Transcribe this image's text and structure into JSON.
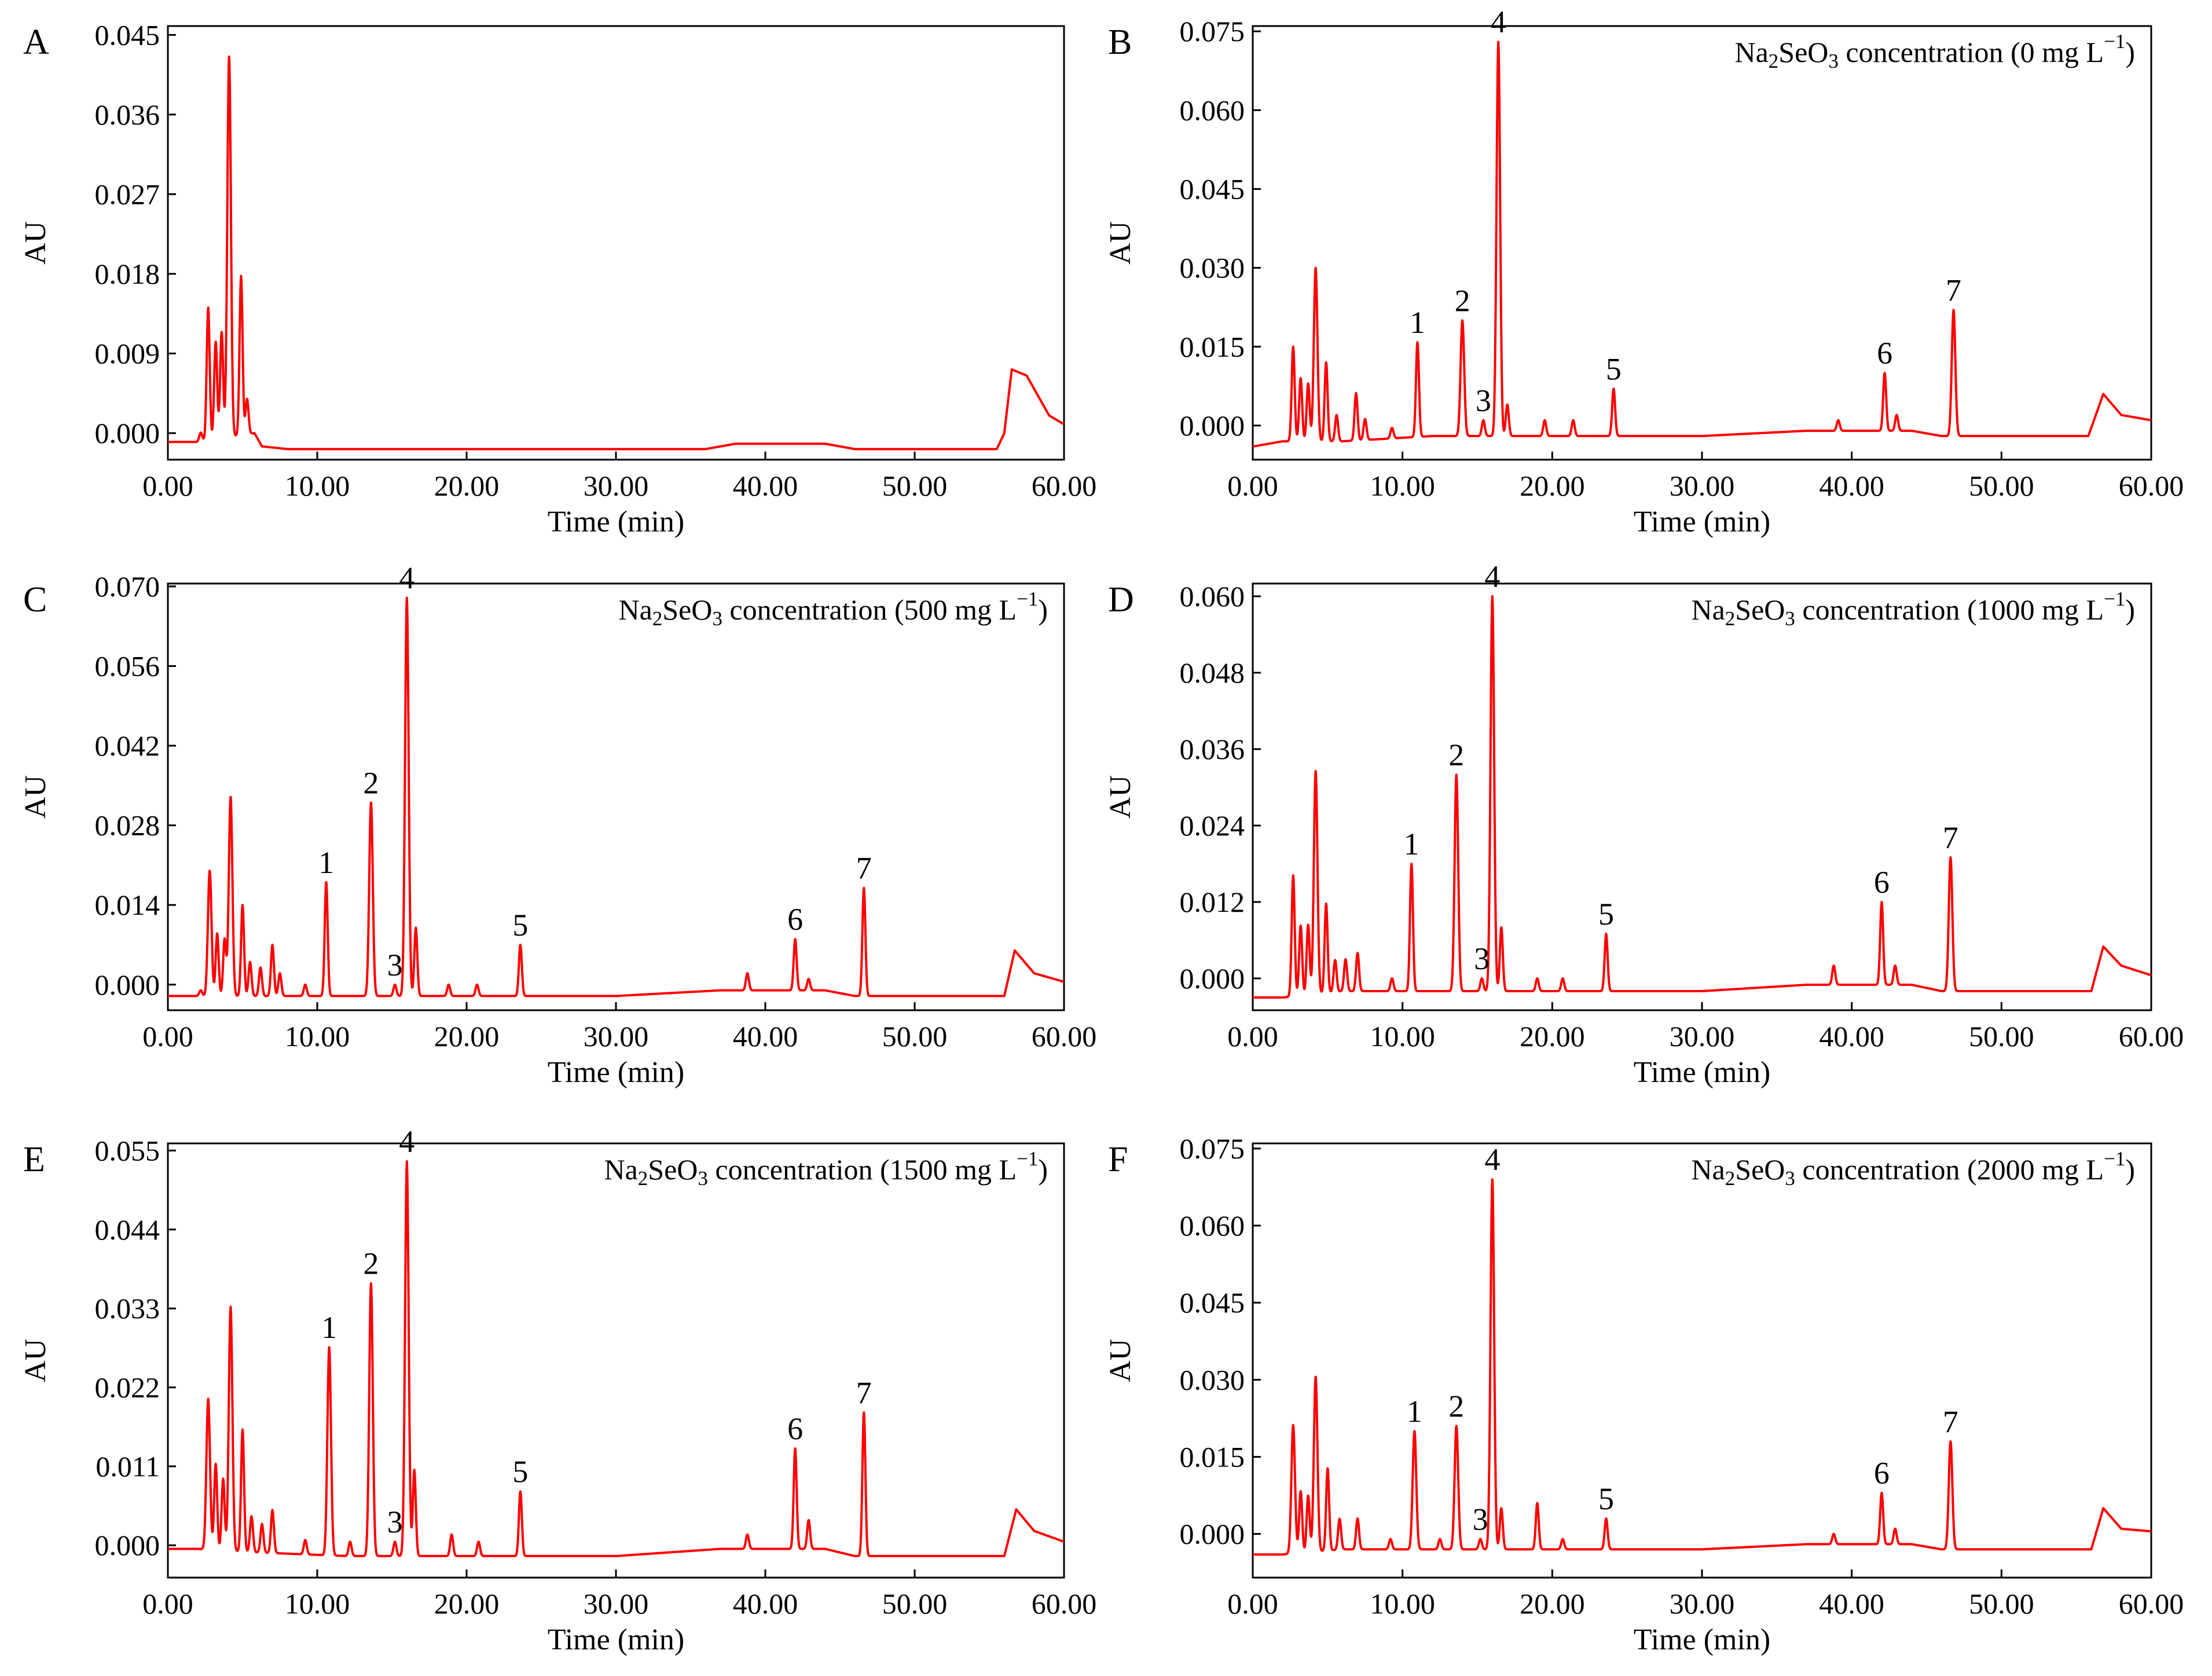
{
  "colors": {
    "trace": "#ff0000",
    "axis": "#000000",
    "background": "#ffffff"
  },
  "chart_data": [
    {
      "type": "line",
      "panel": "A",
      "annotation": null,
      "xlabel": "Time (min)",
      "ylabel": "AU",
      "xlim": [
        0,
        60
      ],
      "ylim": [
        -0.003,
        0.046
      ],
      "xticks": [
        "0.00",
        "10.00",
        "20.00",
        "30.00",
        "40.00",
        "50.00",
        "60.00"
      ],
      "yticks": [
        "0.000",
        "0.009",
        "0.018",
        "0.027",
        "0.036",
        "0.045"
      ],
      "ytick_values": [
        0,
        0.009,
        0.018,
        0.027,
        0.036,
        0.045
      ],
      "baseline": [
        [
          0,
          -0.001
        ],
        [
          2,
          -0.001
        ],
        [
          5.8,
          0
        ],
        [
          6.3,
          -0.0015
        ],
        [
          8,
          -0.0018
        ],
        [
          36,
          -0.0018
        ],
        [
          38,
          -0.0012
        ],
        [
          44,
          -0.0012
        ],
        [
          46,
          -0.0018
        ],
        [
          55.5,
          -0.0018
        ],
        [
          56,
          0
        ],
        [
          56.5,
          0.0072
        ],
        [
          57.5,
          0.0065
        ],
        [
          59,
          0.002
        ],
        [
          60,
          0.001
        ]
      ],
      "peaks": [
        {
          "t": 2.2,
          "h": 0.001
        },
        {
          "t": 2.7,
          "h": 0.015
        },
        {
          "t": 3.2,
          "h": 0.011
        },
        {
          "t": 3.6,
          "h": 0.012
        },
        {
          "t": 4.1,
          "h": 0.043
        },
        {
          "t": 4.9,
          "h": 0.018
        },
        {
          "t": 5.3,
          "h": 0.004
        }
      ],
      "labels": []
    },
    {
      "type": "line",
      "panel": "B",
      "annotation": [
        "Na",
        "2",
        "SeO",
        "3",
        " concentration (0 mg L",
        "−1",
        ")"
      ],
      "xlabel": "Time (min)",
      "ylabel": "AU",
      "xlim": [
        0,
        60
      ],
      "ylim": [
        -0.0065,
        0.076
      ],
      "xticks": [
        "0.00",
        "10.00",
        "20.00",
        "30.00",
        "40.00",
        "50.00",
        "60.00"
      ],
      "yticks": [
        "0.000",
        "0.015",
        "0.030",
        "0.045",
        "0.060",
        "0.075"
      ],
      "ytick_values": [
        0,
        0.015,
        0.03,
        0.045,
        0.06,
        0.075
      ],
      "baseline": [
        [
          0,
          -0.004
        ],
        [
          2,
          -0.003
        ],
        [
          6,
          -0.003
        ],
        [
          12,
          -0.002
        ],
        [
          30,
          -0.002
        ],
        [
          37,
          -0.001
        ],
        [
          44,
          -0.001
        ],
        [
          46,
          -0.002
        ],
        [
          55.8,
          -0.002
        ],
        [
          56.8,
          0.006
        ],
        [
          58,
          0.002
        ],
        [
          60,
          0.001
        ]
      ],
      "peaks": [
        {
          "t": 2.7,
          "h": 0.018
        },
        {
          "t": 3.2,
          "h": 0.012
        },
        {
          "t": 3.7,
          "h": 0.011
        },
        {
          "t": 4.2,
          "h": 0.033
        },
        {
          "t": 4.9,
          "h": 0.015
        },
        {
          "t": 5.6,
          "h": 0.005
        },
        {
          "t": 6.9,
          "h": 0.009
        },
        {
          "t": 7.5,
          "h": 0.004
        },
        {
          "t": 9.3,
          "h": 0.002
        },
        {
          "t": 11,
          "h": 0.018
        },
        {
          "t": 14,
          "h": 0.022
        },
        {
          "t": 15.4,
          "h": 0.003
        },
        {
          "t": 16.4,
          "h": 0.075
        },
        {
          "t": 17,
          "h": 0.006
        },
        {
          "t": 19.5,
          "h": 0.003
        },
        {
          "t": 21.4,
          "h": 0.003
        },
        {
          "t": 24.1,
          "h": 0.009
        },
        {
          "t": 39.1,
          "h": 0.002
        },
        {
          "t": 42.2,
          "h": 0.011
        },
        {
          "t": 43,
          "h": 0.003
        },
        {
          "t": 46.8,
          "h": 0.024
        }
      ],
      "labels": [
        {
          "text": "1",
          "t": 11,
          "h": 0.018
        },
        {
          "text": "2",
          "t": 14,
          "h": 0.022
        },
        {
          "text": "3",
          "t": 15.4,
          "h": 0.003
        },
        {
          "text": "4",
          "t": 16.4,
          "h": 0.075
        },
        {
          "text": "5",
          "t": 24.1,
          "h": 0.009
        },
        {
          "text": "6",
          "t": 42.2,
          "h": 0.011
        },
        {
          "text": "7",
          "t": 46.8,
          "h": 0.024
        }
      ]
    },
    {
      "type": "line",
      "panel": "C",
      "annotation": [
        "Na",
        "2",
        "SeO",
        "3",
        " concentration (500 mg L",
        "−1",
        ")"
      ],
      "xlabel": "Time (min)",
      "ylabel": "AU",
      "xlim": [
        0,
        60
      ],
      "ylim": [
        -0.0045,
        0.0705
      ],
      "xticks": [
        "0.00",
        "10.00",
        "20.00",
        "30.00",
        "40.00",
        "50.00",
        "60.00"
      ],
      "yticks": [
        "0.000",
        "0.014",
        "0.028",
        "0.042",
        "0.056",
        "0.070"
      ],
      "ytick_values": [
        0,
        0.014,
        0.028,
        0.042,
        0.056,
        0.07
      ],
      "baseline": [
        [
          0,
          -0.002
        ],
        [
          2,
          -0.002
        ],
        [
          6,
          -0.002
        ],
        [
          12,
          -0.002
        ],
        [
          30,
          -0.002
        ],
        [
          37,
          -0.001
        ],
        [
          44,
          -0.001
        ],
        [
          46,
          -0.002
        ],
        [
          56,
          -0.002
        ],
        [
          56.7,
          0.006
        ],
        [
          58,
          0.002
        ],
        [
          60,
          0.0005
        ]
      ],
      "peaks": [
        {
          "t": 2.2,
          "h": 0.001
        },
        {
          "t": 2.8,
          "h": 0.022
        },
        {
          "t": 3.3,
          "h": 0.011
        },
        {
          "t": 3.8,
          "h": 0.01
        },
        {
          "t": 4.2,
          "h": 0.035
        },
        {
          "t": 5,
          "h": 0.016
        },
        {
          "t": 5.5,
          "h": 0.006
        },
        {
          "t": 6.2,
          "h": 0.005
        },
        {
          "t": 7,
          "h": 0.009
        },
        {
          "t": 7.5,
          "h": 0.004
        },
        {
          "t": 9.2,
          "h": 0.002
        },
        {
          "t": 10.6,
          "h": 0.02
        },
        {
          "t": 13.6,
          "h": 0.034
        },
        {
          "t": 15.2,
          "h": 0.002
        },
        {
          "t": 16,
          "h": 0.07
        },
        {
          "t": 16.6,
          "h": 0.012
        },
        {
          "t": 18.8,
          "h": 0.002
        },
        {
          "t": 20.7,
          "h": 0.002
        },
        {
          "t": 23.6,
          "h": 0.009
        },
        {
          "t": 38.8,
          "h": 0.003
        },
        {
          "t": 42,
          "h": 0.009
        },
        {
          "t": 42.9,
          "h": 0.002
        },
        {
          "t": 46.6,
          "h": 0.019
        }
      ],
      "labels": [
        {
          "text": "1",
          "t": 10.6,
          "h": 0.02
        },
        {
          "text": "2",
          "t": 13.6,
          "h": 0.034
        },
        {
          "text": "3",
          "t": 15.2,
          "h": 0.002
        },
        {
          "text": "4",
          "t": 16,
          "h": 0.07
        },
        {
          "text": "5",
          "t": 23.6,
          "h": 0.009
        },
        {
          "text": "6",
          "t": 42,
          "h": 0.009
        },
        {
          "text": "7",
          "t": 46.6,
          "h": 0.019
        }
      ]
    },
    {
      "type": "line",
      "panel": "D",
      "annotation": [
        "Na",
        "2",
        "SeO",
        "3",
        " concentration (1000 mg L",
        "−1",
        ")"
      ],
      "xlabel": "Time (min)",
      "ylabel": "AU",
      "xlim": [
        0,
        60
      ],
      "ylim": [
        -0.005,
        0.062
      ],
      "xticks": [
        "0.00",
        "10.00",
        "20.00",
        "30.00",
        "40.00",
        "50.00",
        "60.00"
      ],
      "yticks": [
        "0.000",
        "0.012",
        "0.024",
        "0.036",
        "0.048",
        "0.060"
      ],
      "ytick_values": [
        0,
        0.012,
        0.024,
        0.036,
        0.048,
        0.06
      ],
      "baseline": [
        [
          0,
          -0.003
        ],
        [
          2,
          -0.003
        ],
        [
          6,
          -0.002
        ],
        [
          12,
          -0.002
        ],
        [
          30,
          -0.002
        ],
        [
          37,
          -0.001
        ],
        [
          44,
          -0.001
        ],
        [
          46,
          -0.002
        ],
        [
          56,
          -0.002
        ],
        [
          56.8,
          0.005
        ],
        [
          58,
          0.002
        ],
        [
          60,
          0.0005
        ]
      ],
      "peaks": [
        {
          "t": 2.7,
          "h": 0.019
        },
        {
          "t": 3.2,
          "h": 0.011
        },
        {
          "t": 3.7,
          "h": 0.011
        },
        {
          "t": 4.2,
          "h": 0.035
        },
        {
          "t": 4.9,
          "h": 0.014
        },
        {
          "t": 5.5,
          "h": 0.005
        },
        {
          "t": 6.2,
          "h": 0.005
        },
        {
          "t": 7,
          "h": 0.006
        },
        {
          "t": 9.3,
          "h": 0.002
        },
        {
          "t": 10.6,
          "h": 0.02
        },
        {
          "t": 13.6,
          "h": 0.034
        },
        {
          "t": 15.3,
          "h": 0.002
        },
        {
          "t": 16,
          "h": 0.062
        },
        {
          "t": 16.6,
          "h": 0.01
        },
        {
          "t": 19,
          "h": 0.002
        },
        {
          "t": 20.7,
          "h": 0.002
        },
        {
          "t": 23.6,
          "h": 0.009
        },
        {
          "t": 38.8,
          "h": 0.003
        },
        {
          "t": 42,
          "h": 0.013
        },
        {
          "t": 42.9,
          "h": 0.003
        },
        {
          "t": 46.6,
          "h": 0.021
        }
      ],
      "labels": [
        {
          "text": "1",
          "t": 10.6,
          "h": 0.02
        },
        {
          "text": "2",
          "t": 13.6,
          "h": 0.034
        },
        {
          "text": "3",
          "t": 15.3,
          "h": 0.002
        },
        {
          "text": "4",
          "t": 16,
          "h": 0.062
        },
        {
          "text": "5",
          "t": 23.6,
          "h": 0.009
        },
        {
          "text": "6",
          "t": 42,
          "h": 0.013
        },
        {
          "text": "7",
          "t": 46.6,
          "h": 0.021
        }
      ]
    },
    {
      "type": "line",
      "panel": "E",
      "annotation": [
        "Na",
        "2",
        "SeO",
        "3",
        " concentration (1500 mg L",
        "−1",
        ")"
      ],
      "xlabel": "Time (min)",
      "ylabel": "AU",
      "xlim": [
        0,
        60
      ],
      "ylim": [
        -0.0045,
        0.056
      ],
      "xticks": [
        "0.00",
        "10.00",
        "20.00",
        "30.00",
        "40.00",
        "50.00",
        "60.00"
      ],
      "yticks": [
        "0.000",
        "0.011",
        "0.022",
        "0.033",
        "0.044",
        "0.055"
      ],
      "ytick_values": [
        0,
        0.011,
        0.022,
        0.033,
        0.044,
        0.055
      ],
      "baseline": [
        [
          0,
          -0.0005
        ],
        [
          2,
          -0.0005
        ],
        [
          6,
          -0.001
        ],
        [
          12,
          -0.0015
        ],
        [
          30,
          -0.0015
        ],
        [
          37,
          -0.0005
        ],
        [
          44,
          -0.0005
        ],
        [
          46,
          -0.0015
        ],
        [
          56,
          -0.0015
        ],
        [
          56.8,
          0.005
        ],
        [
          58,
          0.002
        ],
        [
          60,
          0.0005
        ]
      ],
      "peaks": [
        {
          "t": 2.7,
          "h": 0.021
        },
        {
          "t": 3.2,
          "h": 0.012
        },
        {
          "t": 3.7,
          "h": 0.01
        },
        {
          "t": 4.2,
          "h": 0.034
        },
        {
          "t": 5,
          "h": 0.017
        },
        {
          "t": 5.6,
          "h": 0.005
        },
        {
          "t": 6.3,
          "h": 0.004
        },
        {
          "t": 7,
          "h": 0.006
        },
        {
          "t": 9.2,
          "h": 0.002
        },
        {
          "t": 10.8,
          "h": 0.029
        },
        {
          "t": 12.2,
          "h": 0.002
        },
        {
          "t": 13.6,
          "h": 0.038
        },
        {
          "t": 15.2,
          "h": 0.002
        },
        {
          "t": 16,
          "h": 0.055
        },
        {
          "t": 16.5,
          "h": 0.012
        },
        {
          "t": 19,
          "h": 0.003
        },
        {
          "t": 20.8,
          "h": 0.002
        },
        {
          "t": 23.6,
          "h": 0.009
        },
        {
          "t": 38.8,
          "h": 0.002
        },
        {
          "t": 42,
          "h": 0.014
        },
        {
          "t": 42.9,
          "h": 0.004
        },
        {
          "t": 46.6,
          "h": 0.02
        }
      ],
      "labels": [
        {
          "text": "1",
          "t": 10.8,
          "h": 0.029
        },
        {
          "text": "2",
          "t": 13.6,
          "h": 0.038
        },
        {
          "text": "3",
          "t": 15.2,
          "h": 0.002
        },
        {
          "text": "4",
          "t": 16,
          "h": 0.055
        },
        {
          "text": "5",
          "t": 23.6,
          "h": 0.009
        },
        {
          "text": "6",
          "t": 42,
          "h": 0.014
        },
        {
          "text": "7",
          "t": 46.6,
          "h": 0.02
        }
      ]
    },
    {
      "type": "line",
      "panel": "F",
      "annotation": [
        "Na",
        "2",
        "SeO",
        "3",
        " concentration (2000 mg L",
        "−1",
        ")"
      ],
      "xlabel": "Time (min)",
      "ylabel": "AU",
      "xlim": [
        0,
        60
      ],
      "ylim": [
        -0.0085,
        0.076
      ],
      "xticks": [
        "0.00",
        "10.00",
        "20.00",
        "30.00",
        "40.00",
        "50.00",
        "60.00"
      ],
      "yticks": [
        "0.000",
        "0.015",
        "0.030",
        "0.045",
        "0.060",
        "0.075"
      ],
      "ytick_values": [
        0,
        0.015,
        0.03,
        0.045,
        0.06,
        0.075
      ],
      "baseline": [
        [
          0,
          -0.004
        ],
        [
          2,
          -0.004
        ],
        [
          6,
          -0.003
        ],
        [
          12,
          -0.003
        ],
        [
          30,
          -0.003
        ],
        [
          37,
          -0.002
        ],
        [
          44,
          -0.002
        ],
        [
          46,
          -0.003
        ],
        [
          56,
          -0.003
        ],
        [
          56.8,
          0.005
        ],
        [
          58,
          0.001
        ],
        [
          60,
          0.0005
        ]
      ],
      "peaks": [
        {
          "t": 2.7,
          "h": 0.025
        },
        {
          "t": 3.2,
          "h": 0.012
        },
        {
          "t": 3.7,
          "h": 0.011
        },
        {
          "t": 4.2,
          "h": 0.034
        },
        {
          "t": 5,
          "h": 0.016
        },
        {
          "t": 5.8,
          "h": 0.006
        },
        {
          "t": 7,
          "h": 0.006
        },
        {
          "t": 9.2,
          "h": 0.002
        },
        {
          "t": 10.8,
          "h": 0.023
        },
        {
          "t": 12.5,
          "h": 0.002
        },
        {
          "t": 13.6,
          "h": 0.024
        },
        {
          "t": 15.2,
          "h": 0.002
        },
        {
          "t": 16,
          "h": 0.072
        },
        {
          "t": 16.6,
          "h": 0.008
        },
        {
          "t": 19,
          "h": 0.009
        },
        {
          "t": 20.7,
          "h": 0.002
        },
        {
          "t": 23.6,
          "h": 0.006
        },
        {
          "t": 38.8,
          "h": 0.002
        },
        {
          "t": 42,
          "h": 0.01
        },
        {
          "t": 42.9,
          "h": 0.003
        },
        {
          "t": 46.6,
          "h": 0.021
        }
      ],
      "labels": [
        {
          "text": "1",
          "t": 10.8,
          "h": 0.023
        },
        {
          "text": "2",
          "t": 13.6,
          "h": 0.024
        },
        {
          "text": "3",
          "t": 15.2,
          "h": 0.002
        },
        {
          "text": "4",
          "t": 16,
          "h": 0.072
        },
        {
          "text": "5",
          "t": 23.6,
          "h": 0.006
        },
        {
          "text": "6",
          "t": 42,
          "h": 0.01
        },
        {
          "text": "7",
          "t": 46.6,
          "h": 0.021
        }
      ]
    }
  ]
}
